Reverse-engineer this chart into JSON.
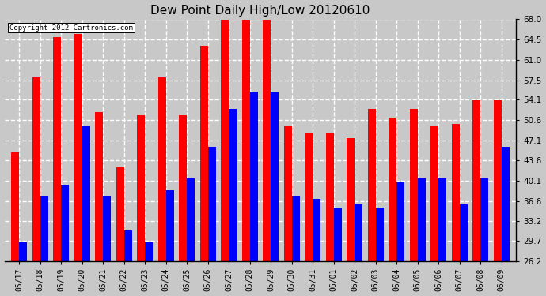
{
  "title": "Dew Point Daily High/Low 20120610",
  "copyright": "Copyright 2012 Cartronics.com",
  "dates": [
    "05/17",
    "05/18",
    "05/19",
    "05/20",
    "05/21",
    "05/22",
    "05/23",
    "05/24",
    "05/25",
    "05/26",
    "05/27",
    "05/28",
    "05/29",
    "05/30",
    "05/31",
    "06/01",
    "06/02",
    "06/03",
    "06/04",
    "06/05",
    "06/06",
    "06/07",
    "06/08",
    "06/09"
  ],
  "highs": [
    45.0,
    58.0,
    65.0,
    65.5,
    52.0,
    42.5,
    51.5,
    58.0,
    51.5,
    63.5,
    68.0,
    68.0,
    68.0,
    49.5,
    48.5,
    48.5,
    47.5,
    52.5,
    51.0,
    52.5,
    49.5,
    50.0,
    54.0,
    54.0
  ],
  "lows": [
    29.5,
    37.5,
    39.5,
    49.5,
    37.5,
    31.5,
    29.5,
    38.5,
    40.5,
    46.0,
    52.5,
    55.5,
    55.5,
    37.5,
    37.0,
    35.5,
    36.0,
    35.5,
    40.0,
    40.5,
    40.5,
    36.0,
    40.5,
    46.0
  ],
  "high_color": "#ff0000",
  "low_color": "#0000ff",
  "fig_bg_color": "#c8c8c8",
  "plot_bg_color": "#c8c8c8",
  "grid_color": "#ffffff",
  "yticks": [
    26.2,
    29.7,
    33.2,
    36.6,
    40.1,
    43.6,
    47.1,
    50.6,
    54.1,
    57.5,
    61.0,
    64.5,
    68.0
  ],
  "ylim": [
    26.2,
    68.0
  ],
  "bar_bottom": 26.2,
  "figsize": [
    6.9,
    3.75
  ],
  "dpi": 100
}
